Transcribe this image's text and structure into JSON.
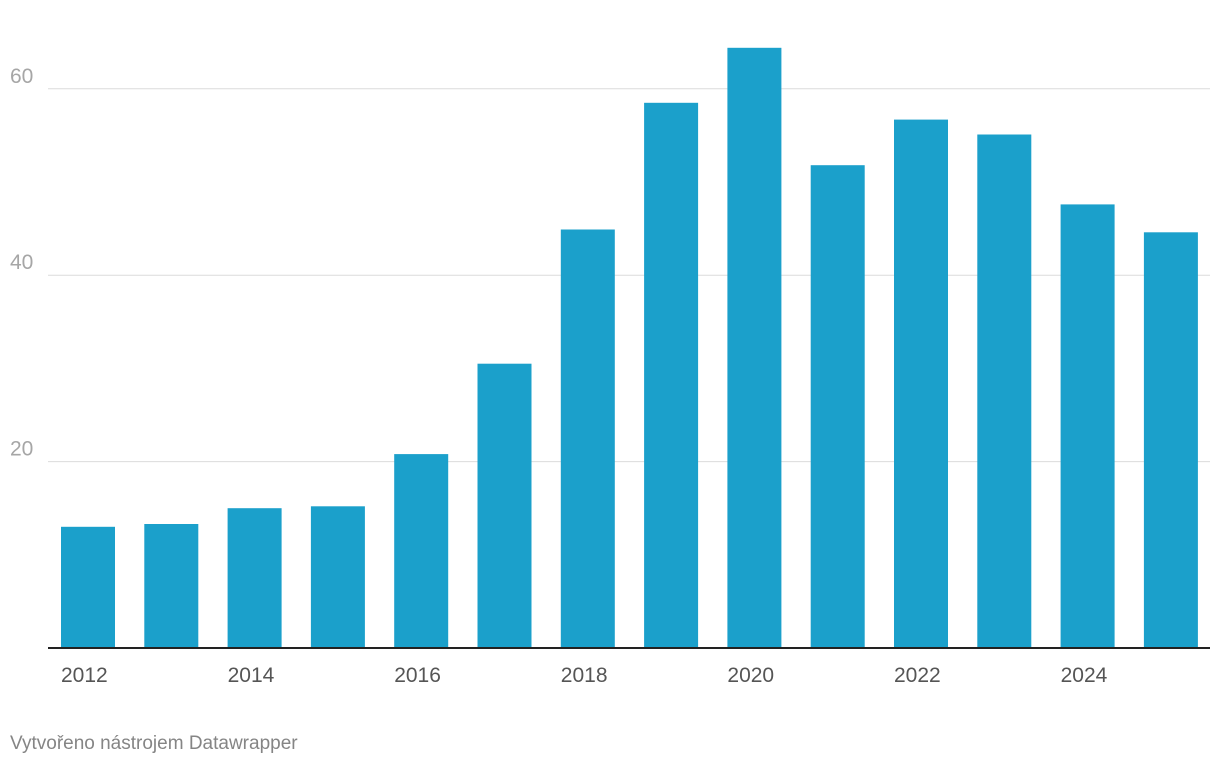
{
  "chart_data": {
    "type": "bar",
    "categories": [
      "2012",
      "2013",
      "2014",
      "2015",
      "2016",
      "2017",
      "2018",
      "2019",
      "2020",
      "2021",
      "2022",
      "2023",
      "2024",
      "2025"
    ],
    "values": [
      13.0,
      13.3,
      15.0,
      15.2,
      20.8,
      30.5,
      44.9,
      58.5,
      64.4,
      51.8,
      56.7,
      55.1,
      47.6,
      44.6
    ],
    "x_tick_labels": [
      "2012",
      "2014",
      "2016",
      "2018",
      "2020",
      "2022",
      "2024"
    ],
    "y_ticks": [
      20,
      40,
      60
    ],
    "ylim": [
      0,
      65
    ],
    "title": "",
    "xlabel": "",
    "ylabel": "",
    "grid": true,
    "bar_color": "#1ba0cb"
  },
  "footer": {
    "credit": "Vytvořeno nástrojem Datawrapper"
  }
}
